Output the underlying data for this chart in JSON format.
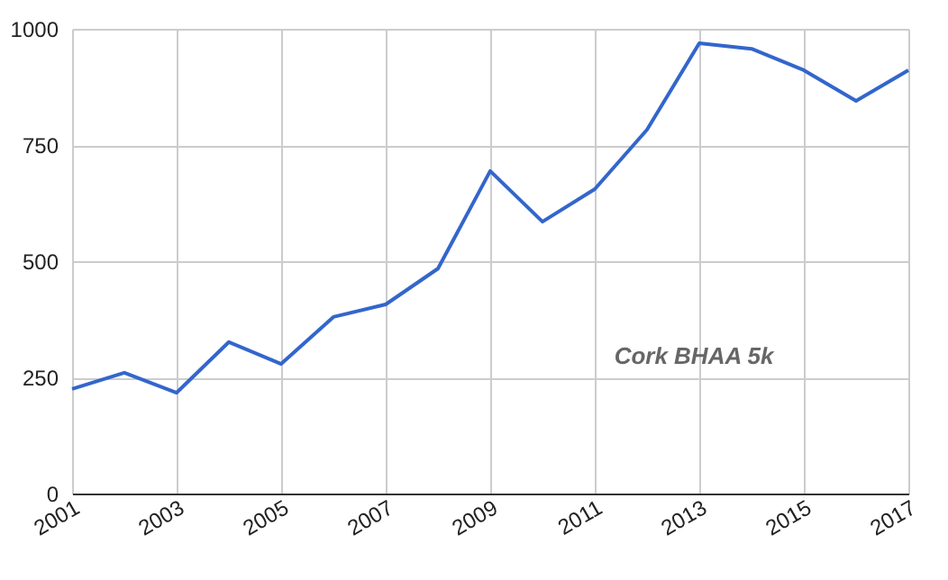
{
  "chart_data": {
    "type": "line",
    "x": [
      2001,
      2002,
      2003,
      2004,
      2005,
      2006,
      2007,
      2008,
      2009,
      2010,
      2011,
      2012,
      2013,
      2014,
      2015,
      2016,
      2017
    ],
    "series": [
      {
        "color": "#3366cc",
        "values": [
          225,
          260,
          217,
          326,
          279,
          380,
          407,
          484,
          694,
          585,
          655,
          783,
          969,
          957,
          911,
          845,
          911
        ]
      }
    ],
    "xlim": [
      2001,
      2017
    ],
    "xticks": [
      2001,
      2003,
      2005,
      2007,
      2009,
      2011,
      2013,
      2015,
      2017
    ],
    "ylim": [
      0,
      1000
    ],
    "yticks": [
      0,
      250,
      500,
      750,
      1000
    ],
    "grid": true,
    "legend": false,
    "marker": "none",
    "line_style": "solid",
    "annotations": [
      "Cork BHAA 5k"
    ]
  }
}
